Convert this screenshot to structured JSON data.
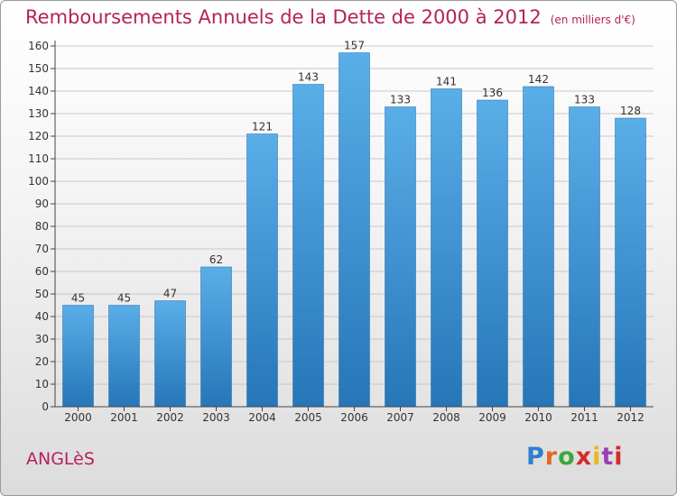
{
  "header": {
    "title": "Remboursements Annuels de la Dette de 2000 à 2012",
    "subtitle": "(en milliers d'€)"
  },
  "footer": {
    "place": "ANGLèS",
    "logo": [
      "P",
      "r",
      "o",
      "x",
      "i",
      "t",
      "i"
    ]
  },
  "colors": {
    "title": "#b5225d",
    "bar_top": "#5aaee8",
    "bar_bottom": "#2676b8"
  },
  "chart_data": {
    "type": "bar",
    "categories": [
      "2000",
      "2001",
      "2002",
      "2003",
      "2004",
      "2005",
      "2006",
      "2007",
      "2008",
      "2009",
      "2010",
      "2011",
      "2012"
    ],
    "values": [
      45,
      45,
      47,
      62,
      121,
      143,
      157,
      133,
      141,
      136,
      142,
      133,
      128
    ],
    "title": "Remboursements Annuels de la Dette de 2000 à 2012",
    "subtitle": "(en milliers d'€)",
    "xlabel": "",
    "ylabel": "",
    "ylim": [
      0,
      160
    ],
    "ytick_step": 10,
    "grid": true,
    "data_labels": true
  }
}
